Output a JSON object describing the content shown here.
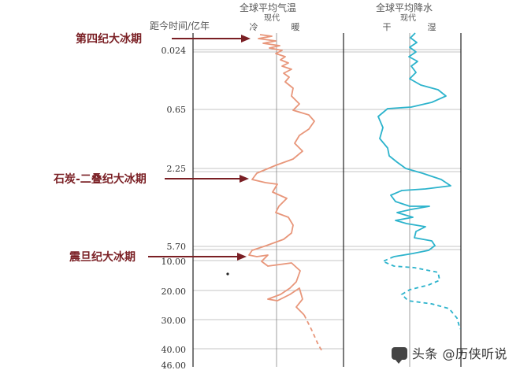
{
  "headers": {
    "temp_title": "全球平均气温",
    "temp_sub": "现代",
    "temp_left": "冷",
    "temp_right": "暖",
    "precip_title": "全球平均降水",
    "precip_sub": "现代",
    "precip_left": "干",
    "precip_right": "湿",
    "time_axis": "距今时间/亿年"
  },
  "time_ticks": [
    "0.024",
    "0.65",
    "2.25",
    "5.70",
    "10.00",
    "20.00",
    "30.00",
    "40.00",
    "46.00"
  ],
  "ice_ages": [
    {
      "label": "第四纪大冰期"
    },
    {
      "label": "石炭-二叠纪大冰期"
    },
    {
      "label": "震旦纪大冰期"
    }
  ],
  "colors": {
    "temperature": "#e8967a",
    "precipitation": "#2cb3cc",
    "arrow": "#7a1f24",
    "grid": "#bbbbbb"
  },
  "watermark": "头条 @历侠听说"
}
